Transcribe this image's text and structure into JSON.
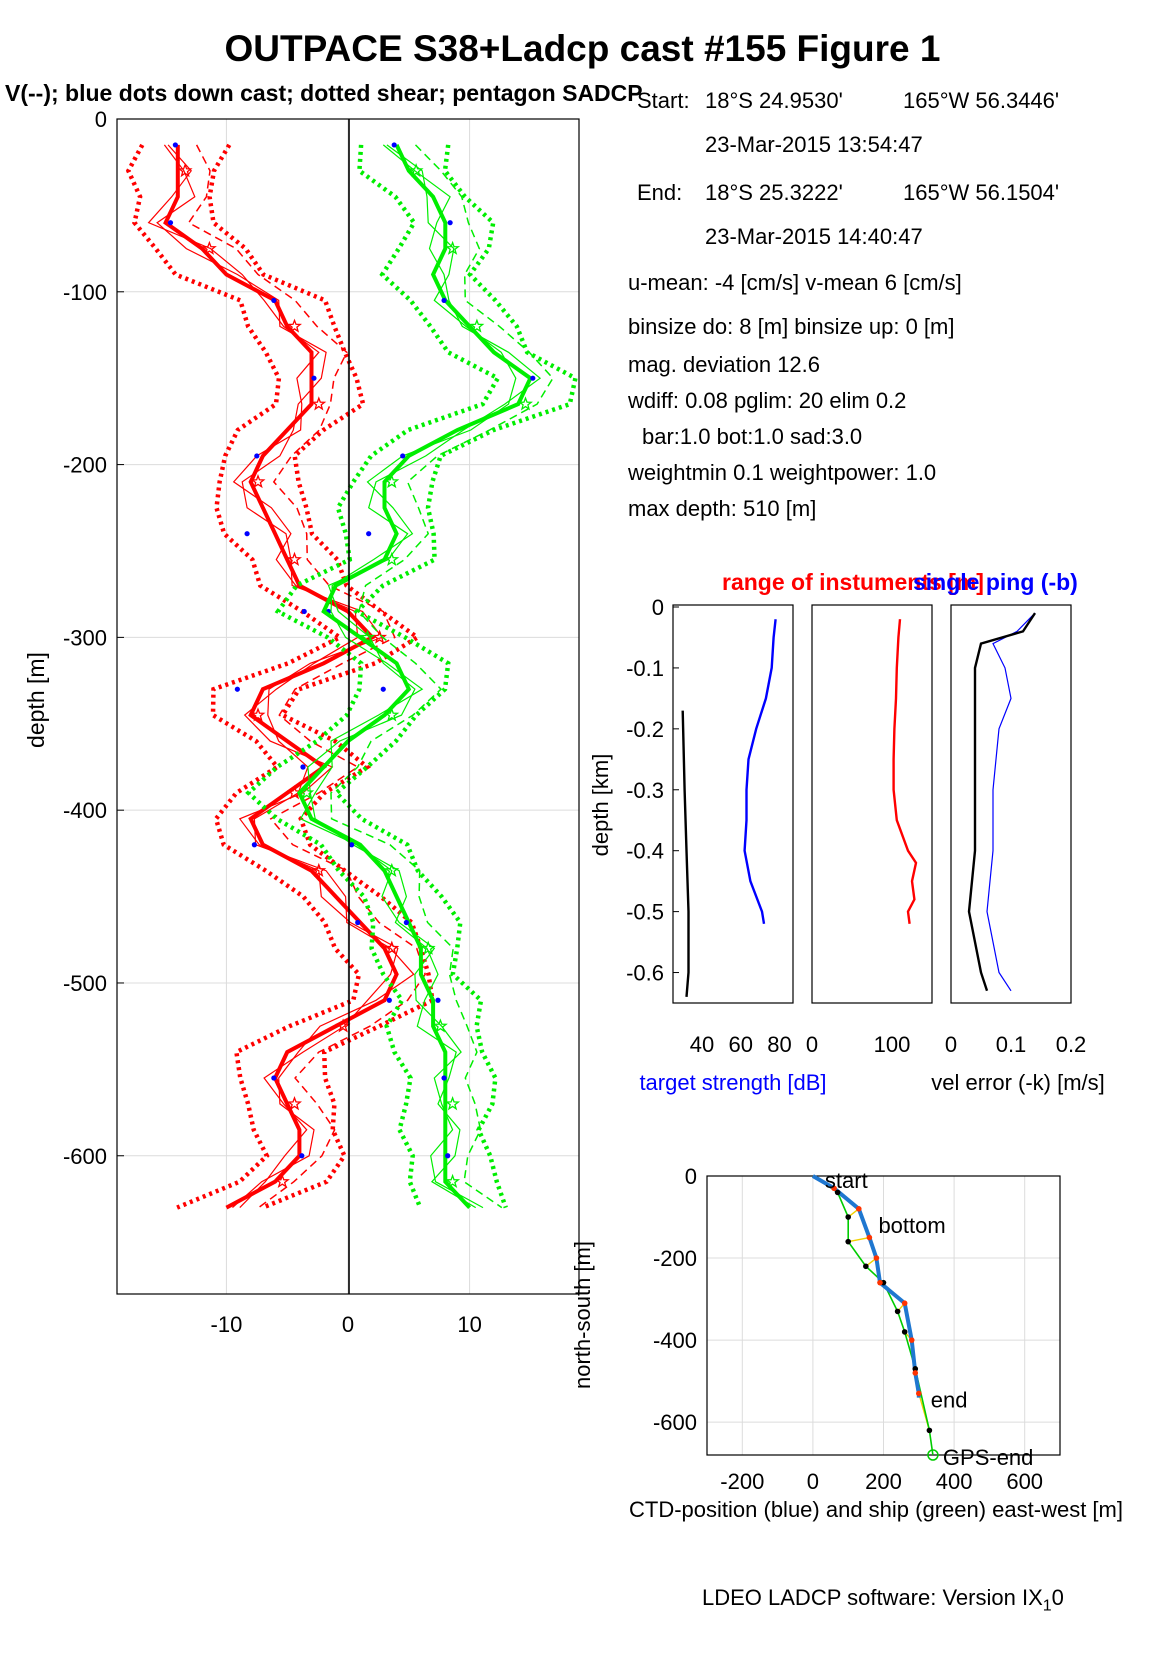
{
  "title": "OUTPACE S38+Ladcp cast #155  Figure 1",
  "subtitle": "V(--); blue dots down cast; dotted shear; pentagon SADCP",
  "info": {
    "start_label": "Start:",
    "start_lat": "18°S 24.9530'",
    "start_lon": "165°W 56.3446'",
    "start_time": "23-Mar-2015 13:54:47",
    "end_label": "End:",
    "end_lat": "18°S 25.3222'",
    "end_lon": "165°W 56.1504'",
    "end_time": "23-Mar-2015 14:40:47",
    "means": "u-mean:  -4 [cm/s]    v-mean   6 [cm/s]",
    "binsize": "binsize do: 8 [m]  binsize up:  0 [m]",
    "mag": "mag. deviation 12.6",
    "wdiff": "wdiff: 0.08  pglim: 20  elim 0.2",
    "bar": "bar:1.0 bot:1.0 sad:3.0",
    "weight": "weightmin 0.1  weightpower: 1.0",
    "maxdepth": "max depth: 510 [m]"
  },
  "footer": "LDEO LADCP software: Version IX",
  "footer_sub": "1",
  "footer_end": "0",
  "chart_data": [
    {
      "type": "line",
      "ylabel": "depth [m]",
      "xlim": [
        -19,
        19
      ],
      "ylim": [
        -680,
        0
      ],
      "xticks": [
        -10,
        0,
        10
      ],
      "yticks": [
        0,
        -100,
        -200,
        -300,
        -400,
        -500,
        -600
      ],
      "grid": true,
      "depth": [
        -15,
        -30,
        -45,
        -60,
        -75,
        -90,
        -105,
        -120,
        -135,
        -150,
        -165,
        -180,
        -195,
        -210,
        -225,
        -240,
        -255,
        -270,
        -285,
        -300,
        -315,
        -330,
        -345,
        -360,
        -375,
        -390,
        -405,
        -420,
        -435,
        -450,
        -465,
        -480,
        -495,
        -510,
        -525,
        -540,
        -555,
        -570,
        -585,
        -600,
        -615,
        -630
      ],
      "series": [
        {
          "name": "u",
          "color": "#ff0000",
          "values": [
            -14,
            -14,
            -14,
            -15,
            -12,
            -10,
            -6,
            -5,
            -3,
            -3,
            -3,
            -5,
            -7,
            -8,
            -7,
            -6,
            -5,
            -4,
            0,
            2,
            -2,
            -7,
            -8,
            -5,
            -2,
            -5,
            -8,
            -7,
            -3,
            -1,
            1,
            3,
            4,
            3,
            -1,
            -5,
            -6,
            -5,
            -4,
            -4,
            -6,
            -10
          ]
        },
        {
          "name": "v",
          "color": "#00ee00",
          "values": [
            4,
            5,
            7,
            8,
            8,
            7,
            8,
            10,
            12,
            15,
            14,
            9,
            5,
            3,
            3,
            4,
            3,
            -1,
            -2,
            1,
            4,
            5,
            3,
            0,
            -2,
            -4,
            -3,
            1,
            3,
            4,
            5,
            6,
            6,
            7,
            7,
            8,
            8,
            8,
            8,
            8,
            8,
            10
          ]
        }
      ],
      "annotations": [
        "blue dots down cast",
        "dotted shear",
        "pentagon SADCP"
      ]
    },
    {
      "type": "line",
      "xlabel": "target strength [dB]",
      "ylabel": "depth [km]",
      "xlim": [
        25,
        87
      ],
      "ylim": [
        -0.65,
        0
      ],
      "xticks": [
        40,
        60,
        80
      ],
      "yticks": [
        0,
        -0.1,
        -0.2,
        -0.3,
        -0.4,
        -0.5,
        -0.6
      ],
      "depth": [
        -0.02,
        -0.05,
        -0.1,
        -0.15,
        -0.2,
        -0.25,
        -0.3,
        -0.35,
        -0.4,
        -0.45,
        -0.5,
        -0.52
      ],
      "series": [
        {
          "name": "",
          "color": "#0000ff",
          "values": [
            78,
            77,
            76,
            73,
            68,
            64,
            63,
            63,
            62,
            65,
            71,
            72
          ]
        },
        {
          "name": "",
          "color": "#000000",
          "depth": [
            -0.17,
            -0.3,
            -0.4,
            -0.5,
            -0.6,
            -0.64
          ],
          "values": [
            30,
            31,
            32,
            33,
            33,
            32
          ]
        }
      ]
    },
    {
      "type": "line",
      "title": "range of instuments [m]",
      "xlim": [
        0,
        150
      ],
      "xticks": [
        0,
        100
      ],
      "ylim": [
        -0.65,
        0
      ],
      "depth": [
        -0.02,
        -0.05,
        -0.1,
        -0.15,
        -0.2,
        -0.25,
        -0.3,
        -0.35,
        -0.4,
        -0.42,
        -0.45,
        -0.48,
        -0.5,
        -0.52
      ],
      "series": [
        {
          "name": "",
          "color": "#ff0000",
          "values": [
            110,
            108,
            106,
            105,
            103,
            102,
            102,
            106,
            120,
            130,
            125,
            128,
            120,
            122
          ]
        }
      ]
    },
    {
      "type": "line",
      "title": "single ping (-b)",
      "xlabel": "vel error (-k) [m/s]",
      "xlim": [
        0,
        0.2
      ],
      "xticks": [
        0,
        0.1,
        0.2
      ],
      "ylim": [
        -0.65,
        0
      ],
      "depth": [
        -0.01,
        -0.04,
        -0.06,
        -0.1,
        -0.15,
        -0.2,
        -0.3,
        -0.4,
        -0.5,
        -0.6,
        -0.63
      ],
      "series": [
        {
          "name": "",
          "color": "#0000ff",
          "values": [
            0.14,
            0.11,
            0.07,
            0.09,
            0.1,
            0.08,
            0.07,
            0.07,
            0.06,
            0.08,
            0.1
          ]
        },
        {
          "name": "",
          "color": "#000000",
          "values": [
            0.14,
            0.12,
            0.05,
            0.04,
            0.04,
            0.04,
            0.04,
            0.04,
            0.03,
            0.05,
            0.06
          ]
        }
      ]
    },
    {
      "type": "line",
      "xlabel": "CTD-position (blue) and ship (green) east-west [m]",
      "ylabel": "north-south [m]",
      "xlim": [
        -300,
        700
      ],
      "ylim": [
        -680,
        0
      ],
      "xticks": [
        -200,
        0,
        200,
        400,
        600
      ],
      "yticks": [
        0,
        -200,
        -400,
        -600
      ],
      "labels": [
        "start",
        "bottom",
        "end",
        "GPS-end"
      ],
      "series": [
        {
          "name": "",
          "color": "#1f77d0",
          "x": [
            0,
            60,
            130,
            160,
            180,
            190,
            260,
            280,
            290,
            300,
            300
          ],
          "y": [
            0,
            -30,
            -80,
            -150,
            -200,
            -260,
            -310,
            -400,
            -480,
            -530,
            -540
          ]
        },
        {
          "name": "",
          "color": "#00cc00",
          "x": [
            0,
            70,
            100,
            100,
            150,
            200,
            240,
            260,
            290,
            330,
            340
          ],
          "y": [
            0,
            -40,
            -100,
            -160,
            -220,
            -260,
            -330,
            -380,
            -470,
            -620,
            -680
          ]
        }
      ]
    }
  ]
}
